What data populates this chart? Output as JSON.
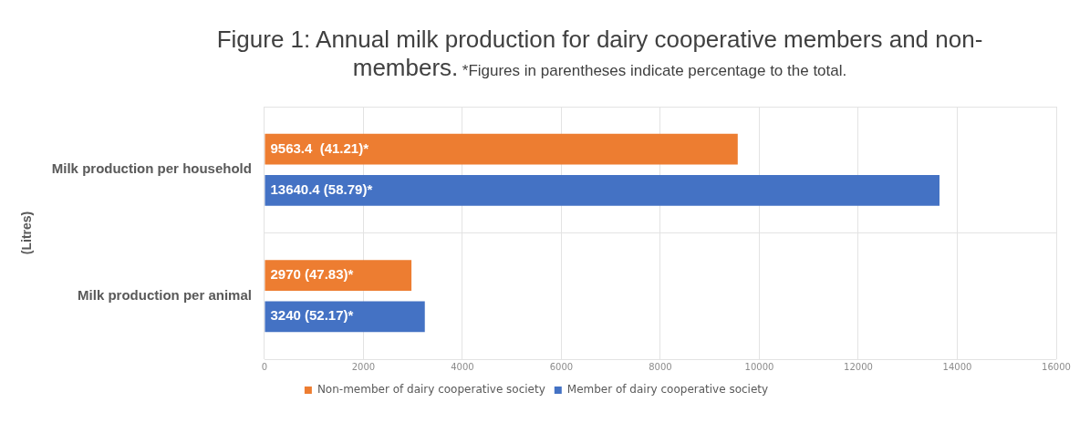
{
  "chart_data": {
    "type": "bar",
    "orientation": "horizontal",
    "title": "Figure 1: Annual milk production for dairy cooperative members and non-members.",
    "subtitle": "*Figures in parentheses indicate percentage to the total.",
    "ylabel": "(Litres)",
    "categories": [
      "Milk production per household",
      "Milk production per animal"
    ],
    "series": [
      {
        "name": "Non-member of dairy cooperative society",
        "color": "#ed7d31",
        "values": [
          9563.4,
          2970
        ],
        "value_labels": [
          "9563.4  (41.21)*",
          "2970 (47.83)*"
        ]
      },
      {
        "name": "Member of dairy cooperative society",
        "color": "#4472c4",
        "values": [
          13640.4,
          3240
        ],
        "value_labels": [
          "13640.4 (58.79)*",
          "3240 (52.17)*"
        ]
      }
    ],
    "xlim": [
      0,
      16000
    ],
    "xticks": [
      0,
      2000,
      4000,
      6000,
      8000,
      10000,
      12000,
      14000,
      16000
    ],
    "grid": true,
    "legend": "bottom"
  }
}
